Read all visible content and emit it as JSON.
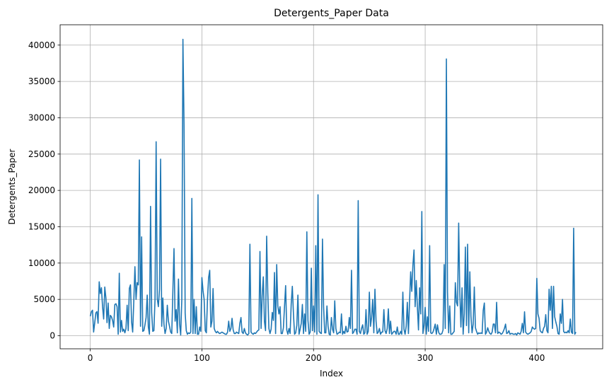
{
  "chart_data": {
    "type": "line",
    "title": "Detergents_Paper Data",
    "xlabel": "Index",
    "ylabel": "Detergents_Paper",
    "xlim": [
      -27,
      459
    ],
    "ylim": [
      -1800,
      42800
    ],
    "grid": true,
    "x_ticks": [
      0,
      100,
      200,
      300,
      400
    ],
    "x_tick_labels": [
      "0",
      "100",
      "200",
      "300",
      "400"
    ],
    "y_ticks": [
      0,
      5000,
      10000,
      15000,
      20000,
      25000,
      30000,
      35000,
      40000
    ],
    "y_tick_labels": [
      "0",
      "5000",
      "10000",
      "15000",
      "20000",
      "25000",
      "30000",
      "35000",
      "40000"
    ],
    "series": [
      {
        "name": "Detergents_Paper",
        "color": "#1f77b4",
        "x_start": 0,
        "values": [
          2674,
          3293,
          3516,
          507,
          1777,
          3140,
          3321,
          1716,
          7425,
          5795,
          6610,
          4000,
          2300,
          6700,
          5200,
          1800,
          4500,
          1000,
          2800,
          2600,
          2100,
          1200,
          4300,
          4400,
          4000,
          200,
          8600,
          500,
          2100,
          600,
          900,
          400,
          1000,
          4200,
          700,
          6500,
          7000,
          1900,
          500,
          4800,
          9500,
          5000,
          7300,
          7000,
          24200,
          1300,
          13600,
          600,
          700,
          1500,
          2500,
          5600,
          1200,
          200,
          17800,
          3200,
          600,
          700,
          5000,
          26700,
          5100,
          4000,
          6400,
          24300,
          1300,
          5200,
          1600,
          300,
          1000,
          4200,
          2000,
          1300,
          500,
          300,
          6200,
          12000,
          2000,
          3600,
          400,
          7800,
          1600,
          100,
          5000,
          40800,
          29000,
          3100,
          700,
          200,
          400,
          300,
          500,
          18900,
          300,
          5000,
          300,
          4000,
          200,
          200,
          1200,
          600,
          8000,
          6200,
          5000,
          700,
          400,
          5000,
          8000,
          9000,
          1200,
          2000,
          6500,
          1000,
          600,
          400,
          600,
          400,
          300,
          400,
          500,
          400,
          300,
          200,
          200,
          500,
          2000,
          600,
          1000,
          2400,
          800,
          300,
          300,
          500,
          400,
          300,
          1700,
          2500,
          500,
          300,
          1000,
          400,
          200,
          100,
          300,
          12600,
          500,
          300,
          200,
          400,
          300,
          500,
          700,
          800,
          11600,
          1000,
          5500,
          8100,
          2000,
          700,
          13700,
          6000,
          1000,
          300,
          900,
          3200,
          2100,
          8700,
          300,
          9800,
          4100,
          3000,
          4000,
          300,
          300,
          1100,
          4000,
          6900,
          800,
          200,
          1000,
          300,
          4400,
          6800,
          3000,
          200,
          400,
          1400,
          5600,
          200,
          900,
          1700,
          4300,
          300,
          3000,
          600,
          14300,
          2100,
          200,
          500,
          9300,
          700,
          4100,
          500,
          12400,
          200,
          19400,
          600,
          400,
          300,
          13300,
          4000,
          400,
          400,
          4100,
          1300,
          200,
          100,
          2500,
          900,
          400,
          4800,
          1000,
          200,
          300,
          500,
          400,
          3000,
          200,
          600,
          300,
          1300,
          500,
          600,
          2500,
          1000,
          9000,
          300,
          500,
          900,
          900,
          200,
          18600,
          600,
          300,
          1000,
          1500,
          200,
          400,
          3600,
          200,
          600,
          6000,
          1300,
          2500,
          5000,
          400,
          6400,
          2000,
          300,
          500,
          1000,
          200,
          500,
          500,
          3600,
          700,
          300,
          1000,
          3700,
          300,
          2000,
          200,
          400,
          600,
          600,
          200,
          1200,
          200,
          200,
          600,
          200,
          6000,
          900,
          200,
          1300,
          4600,
          300,
          4600,
          8800,
          6100,
          9700,
          11800,
          4000,
          7600,
          4000,
          800,
          6600,
          3000,
          17100,
          300,
          1400,
          3900,
          200,
          2600,
          600,
          12400,
          400,
          300,
          500,
          1000,
          1600,
          200,
          1500,
          500,
          200,
          200,
          300,
          800,
          9800,
          1000,
          38100,
          6000,
          400,
          4100,
          200,
          200,
          400,
          600,
          7300,
          4600,
          4100,
          15500,
          6000,
          1200,
          6600,
          200,
          3000,
          12200,
          1400,
          12600,
          400,
          8800,
          2700,
          400,
          1600,
          6700,
          1100,
          600,
          200,
          400,
          300,
          400,
          300,
          3500,
          4500,
          200,
          500,
          1100,
          600,
          300,
          200,
          500,
          1600,
          1600,
          400,
          4600,
          300,
          500,
          400,
          200,
          300,
          600,
          1000,
          1600,
          300,
          400,
          700,
          200,
          300,
          300,
          200,
          200,
          300,
          100,
          400,
          300,
          200,
          600,
          1700,
          400,
          3300,
          500,
          300,
          200,
          300,
          400,
          600,
          1200,
          1000,
          900,
          1000,
          7900,
          3000,
          2400,
          700,
          500,
          400,
          1000,
          1300,
          2900,
          700,
          400,
          6400,
          3500,
          6800,
          1000,
          6800,
          2600,
          1900,
          1300,
          300,
          200,
          3000,
          1700,
          5000,
          600,
          400,
          500,
          400,
          700,
          400,
          2300,
          500,
          300,
          14800,
          200,
          500
        ]
      }
    ]
  }
}
